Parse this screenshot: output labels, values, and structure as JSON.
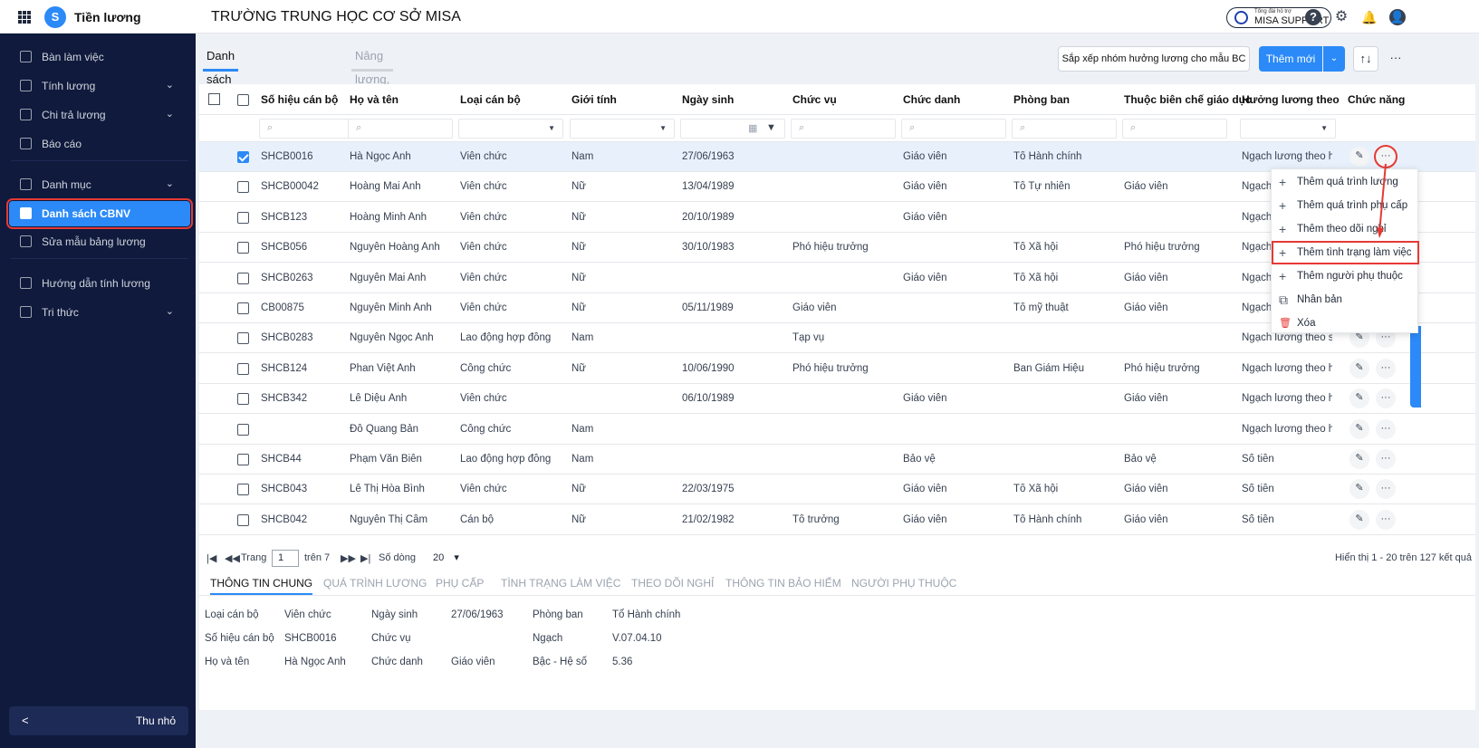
{
  "app": {
    "name": "Tiền lương",
    "school": "TRƯỜNG TRUNG HỌC CƠ SỞ MISA",
    "logo": "S"
  },
  "support": {
    "small": "Tổng đài hỗ trợ",
    "label": "MISA SUPPORT"
  },
  "sidebar": {
    "items": [
      {
        "label": "Bàn làm việc",
        "icon": "desk-icon"
      },
      {
        "label": "Tính lương",
        "icon": "calculator-icon",
        "chev": "⌄"
      },
      {
        "label": "Chi trả lương",
        "icon": "payment-icon",
        "chev": "⌄"
      },
      {
        "label": "Báo cáo",
        "icon": "report-icon"
      },
      {
        "label": "Danh mục",
        "icon": "list-icon",
        "chev": "⌄"
      },
      {
        "label": "Danh sách CBNV",
        "icon": "staff-icon"
      },
      {
        "label": "Sửa mẫu bảng lương",
        "icon": "edit-template-icon"
      },
      {
        "label": "Hướng dẫn tính lương",
        "icon": "guide-icon"
      },
      {
        "label": "Tri thức",
        "icon": "knowledge-icon",
        "chev": "⌄"
      }
    ],
    "collapse_arrow": "<",
    "collapse_label": "Thu nhỏ"
  },
  "tabs": [
    "Danh sách cán bộ nhân viên",
    "Nâng lương, phụ cấp"
  ],
  "toolbar": {
    "sort_label": "Sắp xếp nhóm hưởng lương cho mẫu BC",
    "add_label": "Thêm mới",
    "add_dd": "⌄",
    "sort_icon": "↑↓",
    "more_icon": "···"
  },
  "columns": [
    "Số hiệu cán bộ",
    "Họ và tên",
    "Loại cán bộ",
    "Giới tính",
    "Ngày sinh",
    "Chức vụ",
    "Chức danh",
    "Phòng ban",
    "Thuộc biên chế giáo dục",
    "Hưởng lương theo",
    "Chức năng"
  ],
  "rows": [
    {
      "sel": true,
      "c": [
        "SHCB0016",
        "Hà Ngọc Anh",
        "Viên chức",
        "Nam",
        "27/06/1963",
        "",
        "Giáo viên",
        "Tổ Hành chính",
        "",
        "Ngạch lương theo hệ s"
      ]
    },
    {
      "sel": false,
      "c": [
        "SHCB00042",
        "Hoàng Mai Anh",
        "Viên chức",
        "Nữ",
        "13/04/1989",
        "",
        "Giáo viên",
        "Tổ Tự nhiên",
        "Giáo viên",
        "Ngạch"
      ]
    },
    {
      "sel": false,
      "c": [
        "SHCB123",
        "Hoàng Minh Anh",
        "Viên chức",
        "Nữ",
        "20/10/1989",
        "",
        "Giáo viên",
        "",
        "",
        "Ngạch"
      ]
    },
    {
      "sel": false,
      "c": [
        "SHCB056",
        "Nguyễn Hoàng Anh",
        "Viên chức",
        "Nữ",
        "30/10/1983",
        "Phó hiệu trưởng",
        "",
        "Tổ Xã hội",
        "Phó hiệu trưởng",
        "Ngạch"
      ]
    },
    {
      "sel": false,
      "c": [
        "SHCB0263",
        "Nguyễn Mai Anh",
        "Viên chức",
        "Nữ",
        "",
        "",
        "Giáo viên",
        "Tổ Xã hội",
        "Giáo viên",
        "Ngạch"
      ]
    },
    {
      "sel": false,
      "c": [
        "CB00875",
        "Nguyễn Minh Anh",
        "Viên chức",
        "Nữ",
        "05/11/1989",
        "Giáo viên",
        "",
        "Tổ mỹ thuật",
        "Giáo viên",
        "Ngạch"
      ]
    },
    {
      "sel": false,
      "c": [
        "SHCB0283",
        "Nguyễn Ngọc Anh",
        "Lao động hợp đồng",
        "Nam",
        "",
        "Tạp vụ",
        "",
        "",
        "",
        "Ngạch lương theo số"
      ]
    },
    {
      "sel": false,
      "c": [
        "SHCB124",
        "Phan Việt Anh",
        "Công chức",
        "Nữ",
        "10/06/1990",
        "Phó hiệu trưởng",
        "",
        "Ban Giám Hiệu",
        "Phó hiệu trưởng",
        "Ngạch lương theo hệ s"
      ]
    },
    {
      "sel": false,
      "c": [
        "SHCB342",
        "Lê Diệu Ánh",
        "Viên chức",
        "",
        "06/10/1989",
        "",
        "Giáo viên",
        "",
        "Giáo viên",
        "Ngạch lương theo hệ s"
      ]
    },
    {
      "sel": false,
      "c": [
        "",
        "Đỗ Quang Bản",
        "Công chức",
        "Nam",
        "",
        "",
        "",
        "",
        "",
        "Ngạch lương theo hệ s"
      ]
    },
    {
      "sel": false,
      "c": [
        "SHCB44",
        "Phạm Văn Biên",
        "Lao động hợp đồng",
        "Nam",
        "",
        "",
        "Bảo vệ",
        "",
        "Bảo vệ",
        "Số tiền"
      ]
    },
    {
      "sel": false,
      "c": [
        "SHCB043",
        "Lê Thị Hòa Bình",
        "Viên chức",
        "Nữ",
        "22/03/1975",
        "",
        "Giáo viên",
        "Tổ Xã hội",
        "Giáo viên",
        "Số tiền"
      ]
    },
    {
      "sel": false,
      "c": [
        "SHCB042",
        "Nguyễn Thị Cầm",
        "Cán bộ",
        "Nữ",
        "21/02/1982",
        "Tổ trưởng",
        "Giáo viên",
        "Tổ Hành chính",
        "Giáo viên",
        "Số tiền"
      ]
    }
  ],
  "row_actions": {
    "edit": "✎",
    "more": "···"
  },
  "menu": [
    "Thêm quá trình lương",
    "Thêm quá trình phụ cấp",
    "Thêm theo dõi nghỉ",
    "Thêm tình trạng làm việc",
    "Thêm người phụ thuộc",
    "Nhân bản",
    "Xóa"
  ],
  "pager": {
    "first": "|◀",
    "prev": "◀◀",
    "trang": "Trang",
    "page": "1",
    "of": "trên 7",
    "next": "▶▶",
    "last": "▶|",
    "rows_label": "Số dòng",
    "rows": "20",
    "rows_dd": "▾",
    "summary": "Hiển thị 1 - 20 trên 127 kết quả"
  },
  "detail_tabs": [
    "THÔNG TIN CHUNG",
    "QUÁ TRÌNH LƯƠNG",
    "PHỤ CẤP",
    "TÌNH TRẠNG LÀM VIỆC",
    "THEO DÕI NGHỈ",
    "THÔNG TIN BẢO HIỂM",
    "NGƯỜI PHỤ THUỘC"
  ],
  "detail": [
    [
      "Loại cán bộ",
      "Viên chức",
      "Ngày sinh",
      "27/06/1963",
      "Phòng ban",
      "Tổ Hành chính"
    ],
    [
      "Số hiệu cán bộ",
      "SHCB0016",
      "Chức vụ",
      "",
      "Ngạch",
      "V.07.04.10"
    ],
    [
      "Họ và tên",
      "Hà Ngọc Anh",
      "Chức danh",
      "Giáo viên",
      "Bậc - Hệ số",
      "5.36"
    ]
  ],
  "colors": {
    "accent": "#2b8af7",
    "sidebar": "#0f1a3d",
    "highlight": "#e53935"
  }
}
